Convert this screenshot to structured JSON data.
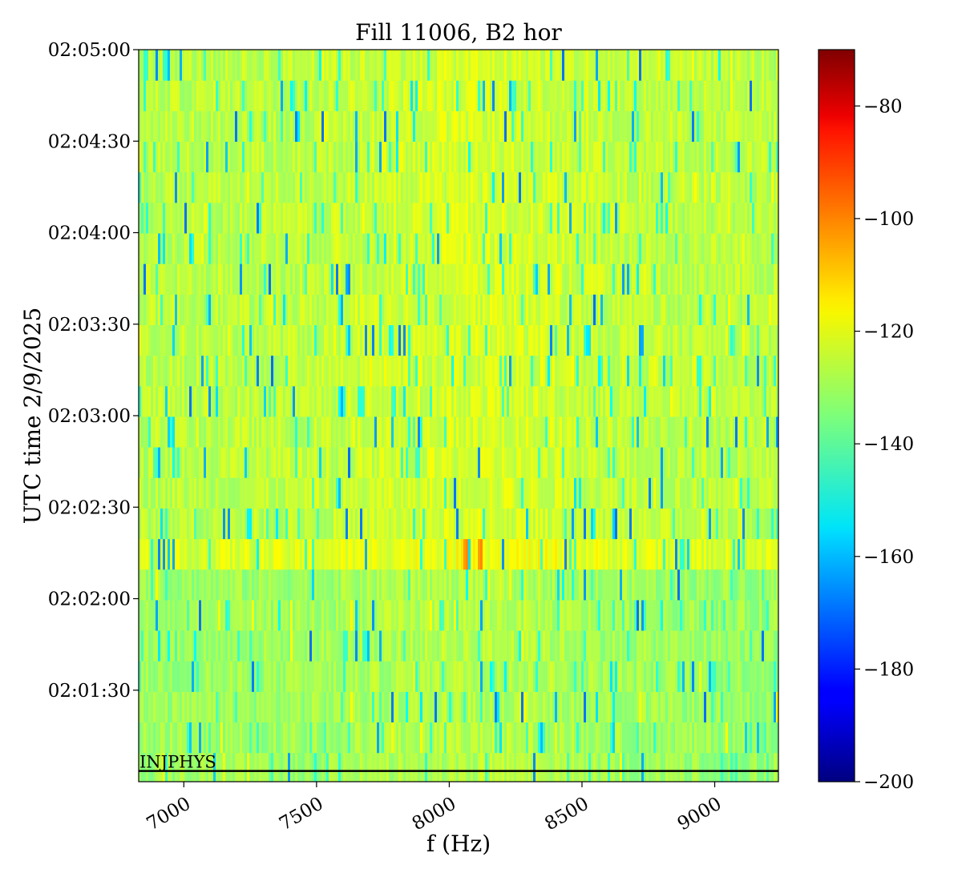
{
  "chart_data": {
    "type": "heatmap",
    "title": "Fill 11006, B2 hor",
    "xlabel": "f (Hz)",
    "ylabel": "UTC time 2/9/2025",
    "xlim": [
      6830,
      9240
    ],
    "x_ticks": [
      7000,
      7500,
      8000,
      8500,
      9000
    ],
    "x_tick_labels": [
      "7000",
      "7500",
      "8000",
      "8500",
      "9000"
    ],
    "ylim_seconds": [
      0,
      240
    ],
    "y_ticks": [
      {
        "label": "02:01:30",
        "t": 30
      },
      {
        "label": "02:02:00",
        "t": 60
      },
      {
        "label": "02:02:30",
        "t": 90
      },
      {
        "label": "02:03:00",
        "t": 120
      },
      {
        "label": "02:03:30",
        "t": 150
      },
      {
        "label": "02:04:00",
        "t": 180
      },
      {
        "label": "02:04:30",
        "t": 210
      },
      {
        "label": "02:05:00",
        "t": 240
      }
    ],
    "colorbar": {
      "colormap": "jet",
      "range": [
        -200,
        -70
      ],
      "ticks": [
        -80,
        -100,
        -120,
        -140,
        -160,
        -180,
        -200
      ],
      "tick_labels": [
        "−80",
        "−100",
        "−120",
        "−140",
        "−160",
        "−180",
        "−200"
      ]
    },
    "heatmap_summary": {
      "n_time_rows": 24,
      "typical_value_dB": -130,
      "noise_range_dB": [
        -165,
        -118
      ],
      "peak_row_time_range": [
        67,
        77
      ],
      "peak_frequencies_Hz": [
        8065,
        8120
      ],
      "peak_value_dB": -105
    },
    "annotations": [
      {
        "text": "INJPHYS",
        "type": "hline",
        "y_time": 3.5
      }
    ],
    "grid": false,
    "legend": "none"
  }
}
